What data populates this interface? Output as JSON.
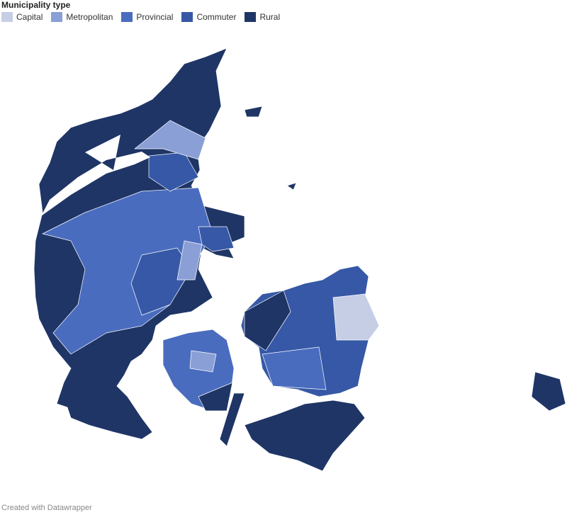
{
  "legend": {
    "title": "Municipality type",
    "items": [
      {
        "name": "Capital",
        "color": "#c6cee6"
      },
      {
        "name": "Metropolitan",
        "color": "#8a9fd5"
      },
      {
        "name": "Provincial",
        "color": "#4a6cbf"
      },
      {
        "name": "Commuter",
        "color": "#3658a6"
      },
      {
        "name": "Rural",
        "color": "#1f3566"
      }
    ]
  },
  "footer": "Created with Datawrapper"
}
